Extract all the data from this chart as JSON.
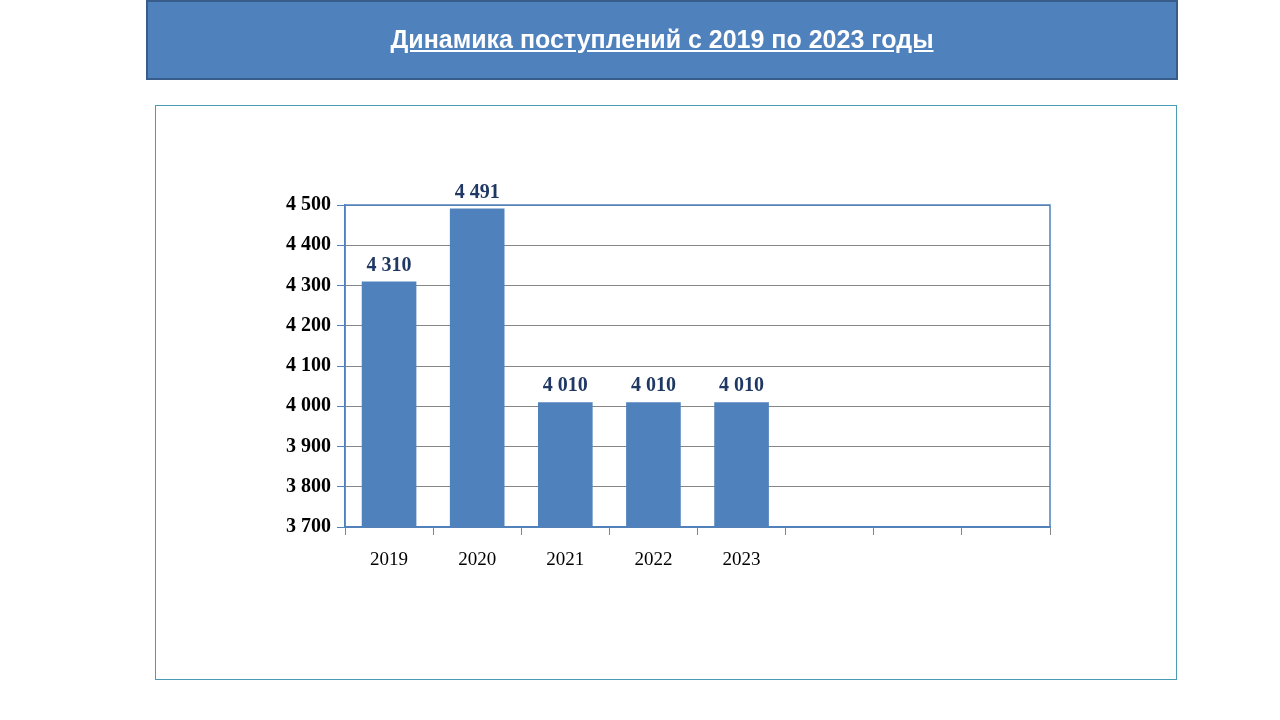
{
  "chart_data": {
    "type": "bar",
    "title": "Динамика поступлений с 2019 по 2023 годы",
    "categories": [
      "2019",
      "2020",
      "2021",
      "2022",
      "2023",
      null,
      null,
      null
    ],
    "values": [
      4310,
      4491,
      4010,
      4010,
      4010,
      null,
      null,
      null
    ],
    "color": "#4f81bd",
    "value_labels": [
      "4 310",
      "4 491",
      "4 010",
      "4 010",
      "4 010",
      null,
      null,
      null
    ],
    "ylim": [
      3700,
      4500
    ],
    "yticks": [
      {
        "value": 3700,
        "label": "3 700"
      },
      {
        "value": 3800,
        "label": "3 800"
      },
      {
        "value": 3900,
        "label": "3 900"
      },
      {
        "value": 4000,
        "label": "4 000"
      },
      {
        "value": 4100,
        "label": "4 100"
      },
      {
        "value": 4200,
        "label": "4 200"
      },
      {
        "value": 4300,
        "label": "4 300"
      },
      {
        "value": 4400,
        "label": "4 400"
      },
      {
        "value": 4500,
        "label": "4 500"
      }
    ],
    "grid": "y"
  }
}
